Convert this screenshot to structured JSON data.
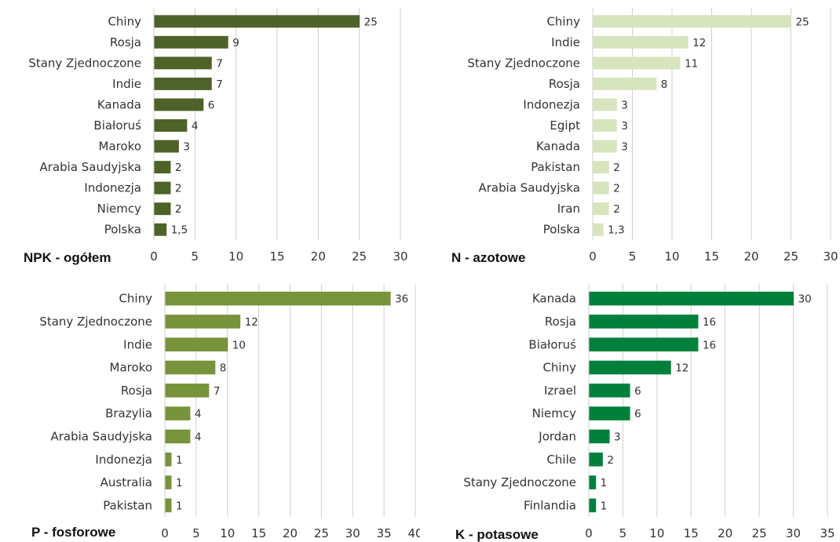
{
  "chart_data": [
    {
      "type": "bar",
      "orientation": "horizontal",
      "title": "NPK - ogółem",
      "categories": [
        "Chiny",
        "Rosja",
        "Stany Zjednoczone",
        "Indie",
        "Kanada",
        "Białoruś",
        "Maroko",
        "Arabia Saudyjska",
        "Indonezja",
        "Niemcy",
        "Polska"
      ],
      "values": [
        25,
        9,
        7,
        7,
        6,
        4,
        3,
        2,
        2,
        2,
        1.5
      ],
      "value_labels": [
        "25",
        "9",
        "7",
        "7",
        "6",
        "4",
        "3",
        "2",
        "2",
        "2",
        "1,5"
      ],
      "xlim": [
        0,
        30
      ],
      "xticks": [
        0,
        5,
        10,
        15,
        20,
        25,
        30
      ],
      "grid": "vertical",
      "color": "#4f6228"
    },
    {
      "type": "bar",
      "orientation": "horizontal",
      "title": "N - azotowe",
      "categories": [
        "Chiny",
        "Indie",
        "Stany Zjednoczone",
        "Rosja",
        "Indonezja",
        "Egipt",
        "Kanada",
        "Pakistan",
        "Arabia Saudyjska",
        "Iran",
        "Polska"
      ],
      "values": [
        25,
        12,
        11,
        8,
        3,
        3,
        3,
        2,
        2,
        2,
        1.3
      ],
      "value_labels": [
        "25",
        "12",
        "11",
        "8",
        "3",
        "3",
        "3",
        "2",
        "2",
        "2",
        "1,3"
      ],
      "xlim": [
        0,
        30
      ],
      "xticks": [
        0,
        5,
        10,
        15,
        20,
        25,
        30
      ],
      "grid": "vertical",
      "color": "#d7e4bd"
    },
    {
      "type": "bar",
      "orientation": "horizontal",
      "title": "P - fosforowe",
      "categories": [
        "Chiny",
        "Stany Zjednoczone",
        "Indie",
        "Maroko",
        "Rosja",
        "Brazylia",
        "Arabia Saudyjska",
        "Indonezja",
        "Australia",
        "Pakistan"
      ],
      "values": [
        36,
        12,
        10,
        8,
        7,
        4,
        4,
        1,
        1,
        1
      ],
      "value_labels": [
        "36",
        "12",
        "10",
        "8",
        "7",
        "4",
        "4",
        "1",
        "1",
        "1"
      ],
      "xlim": [
        0,
        40
      ],
      "xticks": [
        0,
        5,
        10,
        15,
        20,
        25,
        30,
        35,
        40
      ],
      "grid": "vertical",
      "color": "#77933c"
    },
    {
      "type": "bar",
      "orientation": "horizontal",
      "title": "K - potasowe",
      "categories": [
        "Kanada",
        "Rosja",
        "Białoruś",
        "Chiny",
        "Izrael",
        "Niemcy",
        "Jordan",
        "Chile",
        "Stany Zjednoczone",
        "Finlandia"
      ],
      "values": [
        30,
        16,
        16,
        12,
        6,
        6,
        3,
        2,
        1,
        1
      ],
      "value_labels": [
        "30",
        "16",
        "16",
        "12",
        "6",
        "6",
        "3",
        "2",
        "1",
        "1"
      ],
      "xlim": [
        0,
        35
      ],
      "xticks": [
        0,
        5,
        10,
        15,
        20,
        25,
        30,
        35
      ],
      "grid": "vertical",
      "color": "#00803b"
    }
  ]
}
